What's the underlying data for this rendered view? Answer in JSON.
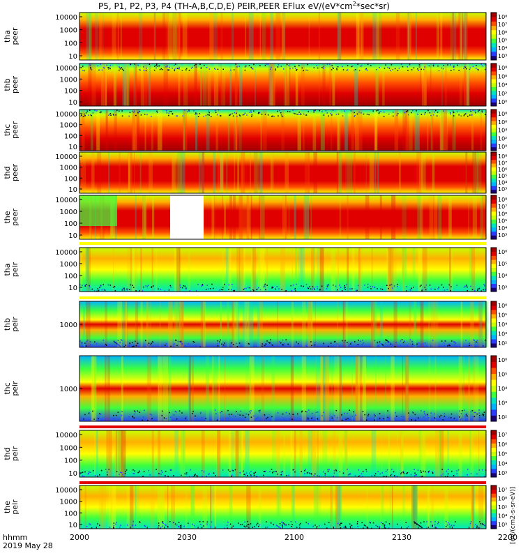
{
  "title": {
    "prefix": "P5, P1, P2, P3, P4 (TH-A,B,C,D,E) PEIR,PEER EFlux eV/(eV*cm",
    "sup": "2",
    "suffix": "*sec*sr)"
  },
  "x_axis": {
    "ticks": [
      "2000",
      "2030",
      "2100",
      "2130",
      "2200"
    ],
    "time_label": "hhmm",
    "date_label": "2019 May 28"
  },
  "colorbar_unit": "[eV/(cm2-s-sr-eV)]",
  "colors": {
    "colormap": [
      "#1a0070",
      "#2a3cff",
      "#00b4ff",
      "#00e5c0",
      "#3dff3d",
      "#c8ff00",
      "#ffff00",
      "#ffb000",
      "#ff5000",
      "#e00000",
      "#a00000"
    ],
    "frame": "#000000"
  },
  "chart_data": [
    {
      "type": "heatmap",
      "probe": "tha",
      "instrument": "peer",
      "ylabel": [
        "tha",
        "peer"
      ],
      "y_ticks": [
        "10000",
        "1000",
        "100",
        "10"
      ],
      "y_log": true,
      "colorbar_ticks": [
        "10⁸",
        "10⁷",
        "10⁶",
        "10⁵",
        "10⁴",
        "10³"
      ],
      "x_range": [
        "20:00",
        "22:00"
      ]
    },
    {
      "type": "heatmap",
      "probe": "thb",
      "instrument": "peer",
      "ylabel": [
        "thb",
        "peer"
      ],
      "y_ticks": [
        "10000",
        "1000",
        "100",
        "10"
      ],
      "y_log": true,
      "colorbar_ticks": [
        "10⁸",
        "10⁶",
        "10⁴",
        "10²",
        "10⁰"
      ],
      "x_range": [
        "20:00",
        "22:00"
      ]
    },
    {
      "type": "heatmap",
      "probe": "thc",
      "instrument": "peer",
      "ylabel": [
        "thc",
        "peer"
      ],
      "y_ticks": [
        "10000",
        "1000",
        "100",
        "10"
      ],
      "y_log": true,
      "colorbar_ticks": [
        "10⁸",
        "10⁶",
        "10⁴",
        "10²",
        "10⁰"
      ],
      "x_range": [
        "20:00",
        "22:00"
      ]
    },
    {
      "type": "heatmap",
      "probe": "thd",
      "instrument": "peer",
      "ylabel": [
        "thd",
        "peer"
      ],
      "y_ticks": [
        "10000",
        "1000",
        "100",
        "10"
      ],
      "y_log": true,
      "colorbar_ticks": [
        "10⁸",
        "10⁷",
        "10⁶",
        "10⁵",
        "10⁴",
        "10³"
      ],
      "x_range": [
        "20:00",
        "22:00"
      ]
    },
    {
      "type": "heatmap",
      "probe": "the",
      "instrument": "peer",
      "ylabel": [
        "the",
        "peer"
      ],
      "y_ticks": [
        "10000",
        "1000",
        "100",
        "10"
      ],
      "y_log": true,
      "colorbar_ticks": [
        "10⁸",
        "10⁷",
        "10⁶",
        "10⁵",
        "10⁴",
        "10³"
      ],
      "x_range": [
        "20:00",
        "22:00"
      ]
    },
    {
      "type": "heatmap",
      "probe": "tha",
      "instrument": "peir",
      "ylabel": [
        "tha",
        "peir"
      ],
      "y_ticks": [
        "10000",
        "1000",
        "100",
        "10"
      ],
      "y_log": true,
      "colorbar_ticks": [
        "10⁶",
        "10⁵",
        "10⁴",
        "10³"
      ],
      "x_range": [
        "20:00",
        "22:00"
      ]
    },
    {
      "type": "heatmap",
      "probe": "thb",
      "instrument": "peir",
      "ylabel": [
        "thb",
        "peir"
      ],
      "y_ticks": [
        "1000"
      ],
      "y_log": true,
      "colorbar_ticks": [
        "10⁶",
        "10⁵",
        "10⁴",
        "10³",
        "10²"
      ],
      "x_range": [
        "20:00",
        "22:00"
      ]
    },
    {
      "type": "heatmap",
      "probe": "thc",
      "instrument": "peir",
      "ylabel": [
        "thc",
        "peir"
      ],
      "y_ticks": [
        "1000"
      ],
      "y_log": true,
      "colorbar_ticks": [
        "10⁶",
        "10⁵",
        "10⁴",
        "10³",
        "10²"
      ],
      "x_range": [
        "20:00",
        "22:00"
      ]
    },
    {
      "type": "heatmap",
      "probe": "thd",
      "instrument": "peir",
      "ylabel": [
        "thd",
        "peir"
      ],
      "y_ticks": [
        "10000",
        "1000",
        "100",
        "10"
      ],
      "y_log": true,
      "colorbar_ticks": [
        "10⁷",
        "10⁶",
        "10⁵",
        "10⁴",
        "10³"
      ],
      "x_range": [
        "20:00",
        "22:00"
      ]
    },
    {
      "type": "heatmap",
      "probe": "the",
      "instrument": "peir",
      "ylabel": [
        "the",
        "peir"
      ],
      "y_ticks": [
        "10000",
        "1000",
        "100",
        "10"
      ],
      "y_log": true,
      "colorbar_ticks": [
        "10⁷",
        "10⁶",
        "10⁵",
        "10⁴",
        "10³"
      ],
      "x_range": [
        "20:00",
        "22:00"
      ]
    }
  ]
}
